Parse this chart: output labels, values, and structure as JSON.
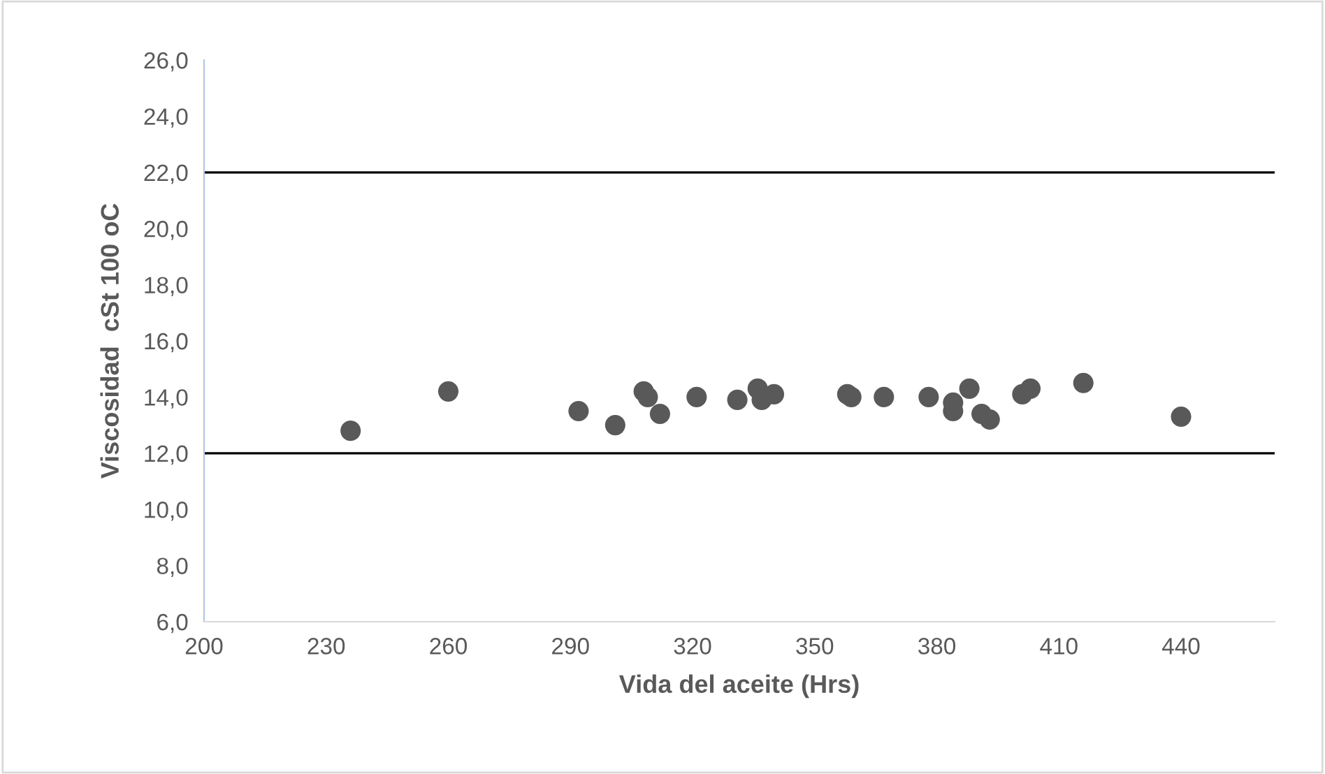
{
  "chart_data": {
    "type": "scatter",
    "xlabel": "Vida del aceite (Hrs)",
    "ylabel": "Viscosidad  cSt 100 oC",
    "x": [
      236,
      260,
      292,
      301,
      308,
      309,
      312,
      321,
      331,
      336,
      337,
      340,
      358,
      359,
      367,
      378,
      384,
      384,
      388,
      391,
      393,
      401,
      403,
      416,
      440
    ],
    "series": [
      {
        "color": "#595959",
        "values": [
          12.8,
          14.2,
          13.5,
          13.0,
          14.2,
          14.0,
          13.4,
          14.0,
          13.9,
          14.3,
          13.9,
          14.1,
          14.1,
          14.0,
          14.0,
          14.0,
          13.8,
          13.5,
          14.3,
          13.4,
          13.2,
          14.1,
          14.3,
          14.5,
          13.3
        ]
      }
    ],
    "marker": "circle",
    "grid": false,
    "legend": false,
    "xlim": [
      200,
      463
    ],
    "xticks": [
      200,
      230,
      260,
      290,
      320,
      350,
      380,
      410,
      440
    ],
    "ylim": [
      6,
      26
    ],
    "yticks": [
      {
        "value": 6,
        "label": "6,0"
      },
      {
        "value": 8,
        "label": "8,0"
      },
      {
        "value": 10,
        "label": "10,0"
      },
      {
        "value": 12,
        "label": "12,0"
      },
      {
        "value": 14,
        "label": "14,0"
      },
      {
        "value": 16,
        "label": "16,0"
      },
      {
        "value": 18,
        "label": "18,0"
      },
      {
        "value": 20,
        "label": "20,0"
      },
      {
        "value": 22,
        "label": "22,0"
      },
      {
        "value": 24,
        "label": "24,0"
      },
      {
        "value": 26,
        "label": "26,0"
      }
    ],
    "ref_lines": [
      {
        "axis": "y",
        "value": 12,
        "color": "#000000",
        "line_style": "solid"
      },
      {
        "axis": "y",
        "value": 22,
        "color": "#000000",
        "line_style": "solid"
      }
    ]
  }
}
